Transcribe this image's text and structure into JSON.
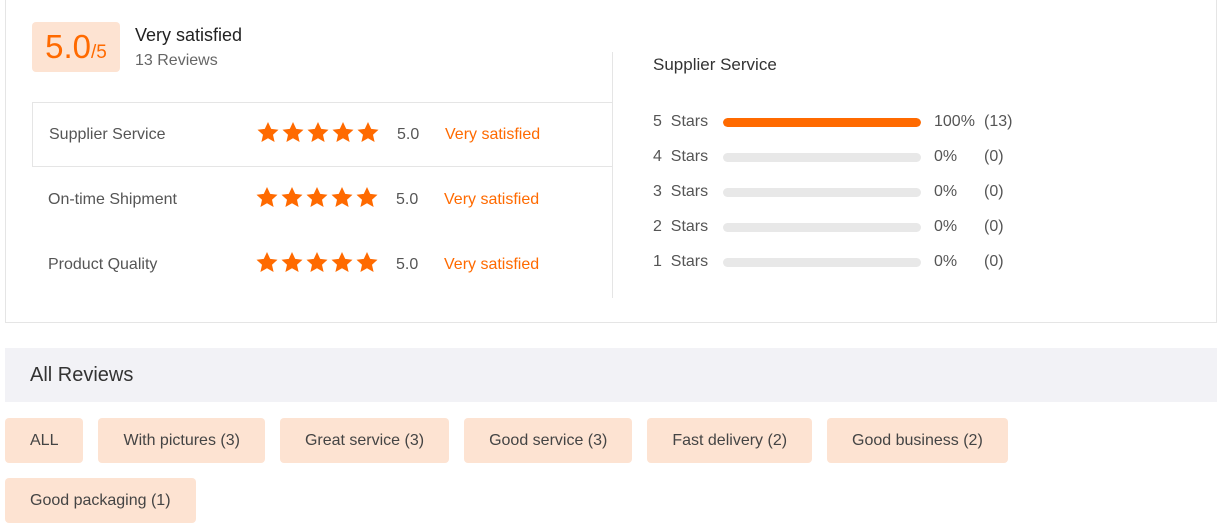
{
  "summary": {
    "score": "5.0",
    "denominator": "/5",
    "label": "Very satisfied",
    "reviews": "13 Reviews"
  },
  "ratings": [
    {
      "label": "Supplier Service",
      "value": "5.0",
      "text": "Very satisfied",
      "stars": 5
    },
    {
      "label": "On-time Shipment",
      "value": "5.0",
      "text": "Very satisfied",
      "stars": 5
    },
    {
      "label": "Product Quality",
      "value": "5.0",
      "text": "Very satisfied",
      "stars": 5
    }
  ],
  "distribution": {
    "title": "Supplier Service",
    "rows": [
      {
        "label": "5  Stars",
        "percent": "100%",
        "count": "(13)",
        "fraction": 1
      },
      {
        "label": "4  Stars",
        "percent": "0%",
        "count": "(0)",
        "fraction": 0
      },
      {
        "label": "3  Stars",
        "percent": "0%",
        "count": "(0)",
        "fraction": 0
      },
      {
        "label": "2  Stars",
        "percent": "0%",
        "count": "(0)",
        "fraction": 0
      },
      {
        "label": "1  Stars",
        "percent": "0%",
        "count": "(0)",
        "fraction": 0
      }
    ]
  },
  "all_reviews": {
    "title": "All Reviews",
    "tags": [
      "ALL",
      "With pictures (3)",
      "Great service (3)",
      "Good service (3)",
      "Fast delivery (2)",
      "Good business (2)",
      "Good packaging (1)"
    ]
  },
  "colors": {
    "accent": "#ff6a00",
    "tag_bg": "#fde3d2",
    "header_bg": "#f2f2f6"
  }
}
